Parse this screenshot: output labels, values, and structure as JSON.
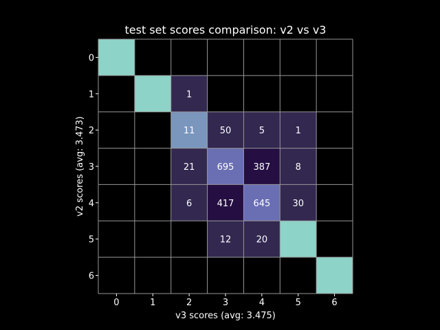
{
  "chart_data": {
    "type": "heatmap",
    "title": "test set scores comparison: v2 vs v3",
    "xlabel": "v3 scores (avg: 3.475)",
    "ylabel": "v2 scores (avg: 3.473)",
    "x_categories": [
      "0",
      "1",
      "2",
      "3",
      "4",
      "5",
      "6"
    ],
    "y_categories": [
      "0",
      "1",
      "2",
      "3",
      "4",
      "5",
      "6"
    ],
    "grid": true,
    "diagonal_color": "#8dd3c7",
    "cells": [
      {
        "row": 0,
        "col": 0,
        "diagonal": true
      },
      {
        "row": 1,
        "col": 1,
        "diagonal": true
      },
      {
        "row": 1,
        "col": 2,
        "value": 1,
        "label": "1",
        "color": "#322850"
      },
      {
        "row": 2,
        "col": 2,
        "value": 11,
        "label": "11",
        "color": "#7b96bd"
      },
      {
        "row": 2,
        "col": 3,
        "value": 50,
        "label": "50",
        "color": "#322850"
      },
      {
        "row": 2,
        "col": 4,
        "value": 5,
        "label": "5",
        "color": "#322850"
      },
      {
        "row": 2,
        "col": 5,
        "value": 1,
        "label": "1",
        "color": "#322850"
      },
      {
        "row": 3,
        "col": 2,
        "value": 21,
        "label": "21",
        "color": "#322850"
      },
      {
        "row": 3,
        "col": 3,
        "value": 695,
        "label": "695",
        "color": "#6a6fb3"
      },
      {
        "row": 3,
        "col": 4,
        "value": 387,
        "label": "387",
        "color": "#250f42"
      },
      {
        "row": 3,
        "col": 5,
        "value": 8,
        "label": "8",
        "color": "#322850"
      },
      {
        "row": 4,
        "col": 2,
        "value": 6,
        "label": "6",
        "color": "#322850"
      },
      {
        "row": 4,
        "col": 3,
        "value": 417,
        "label": "417",
        "color": "#250f42"
      },
      {
        "row": 4,
        "col": 4,
        "value": 645,
        "label": "645",
        "color": "#6a6fb3"
      },
      {
        "row": 4,
        "col": 5,
        "value": 30,
        "label": "30",
        "color": "#322850"
      },
      {
        "row": 5,
        "col": 3,
        "value": 12,
        "label": "12",
        "color": "#322850"
      },
      {
        "row": 5,
        "col": 4,
        "value": 20,
        "label": "20",
        "color": "#322850"
      },
      {
        "row": 5,
        "col": 5,
        "diagonal": true
      },
      {
        "row": 6,
        "col": 6,
        "diagonal": true
      }
    ]
  }
}
